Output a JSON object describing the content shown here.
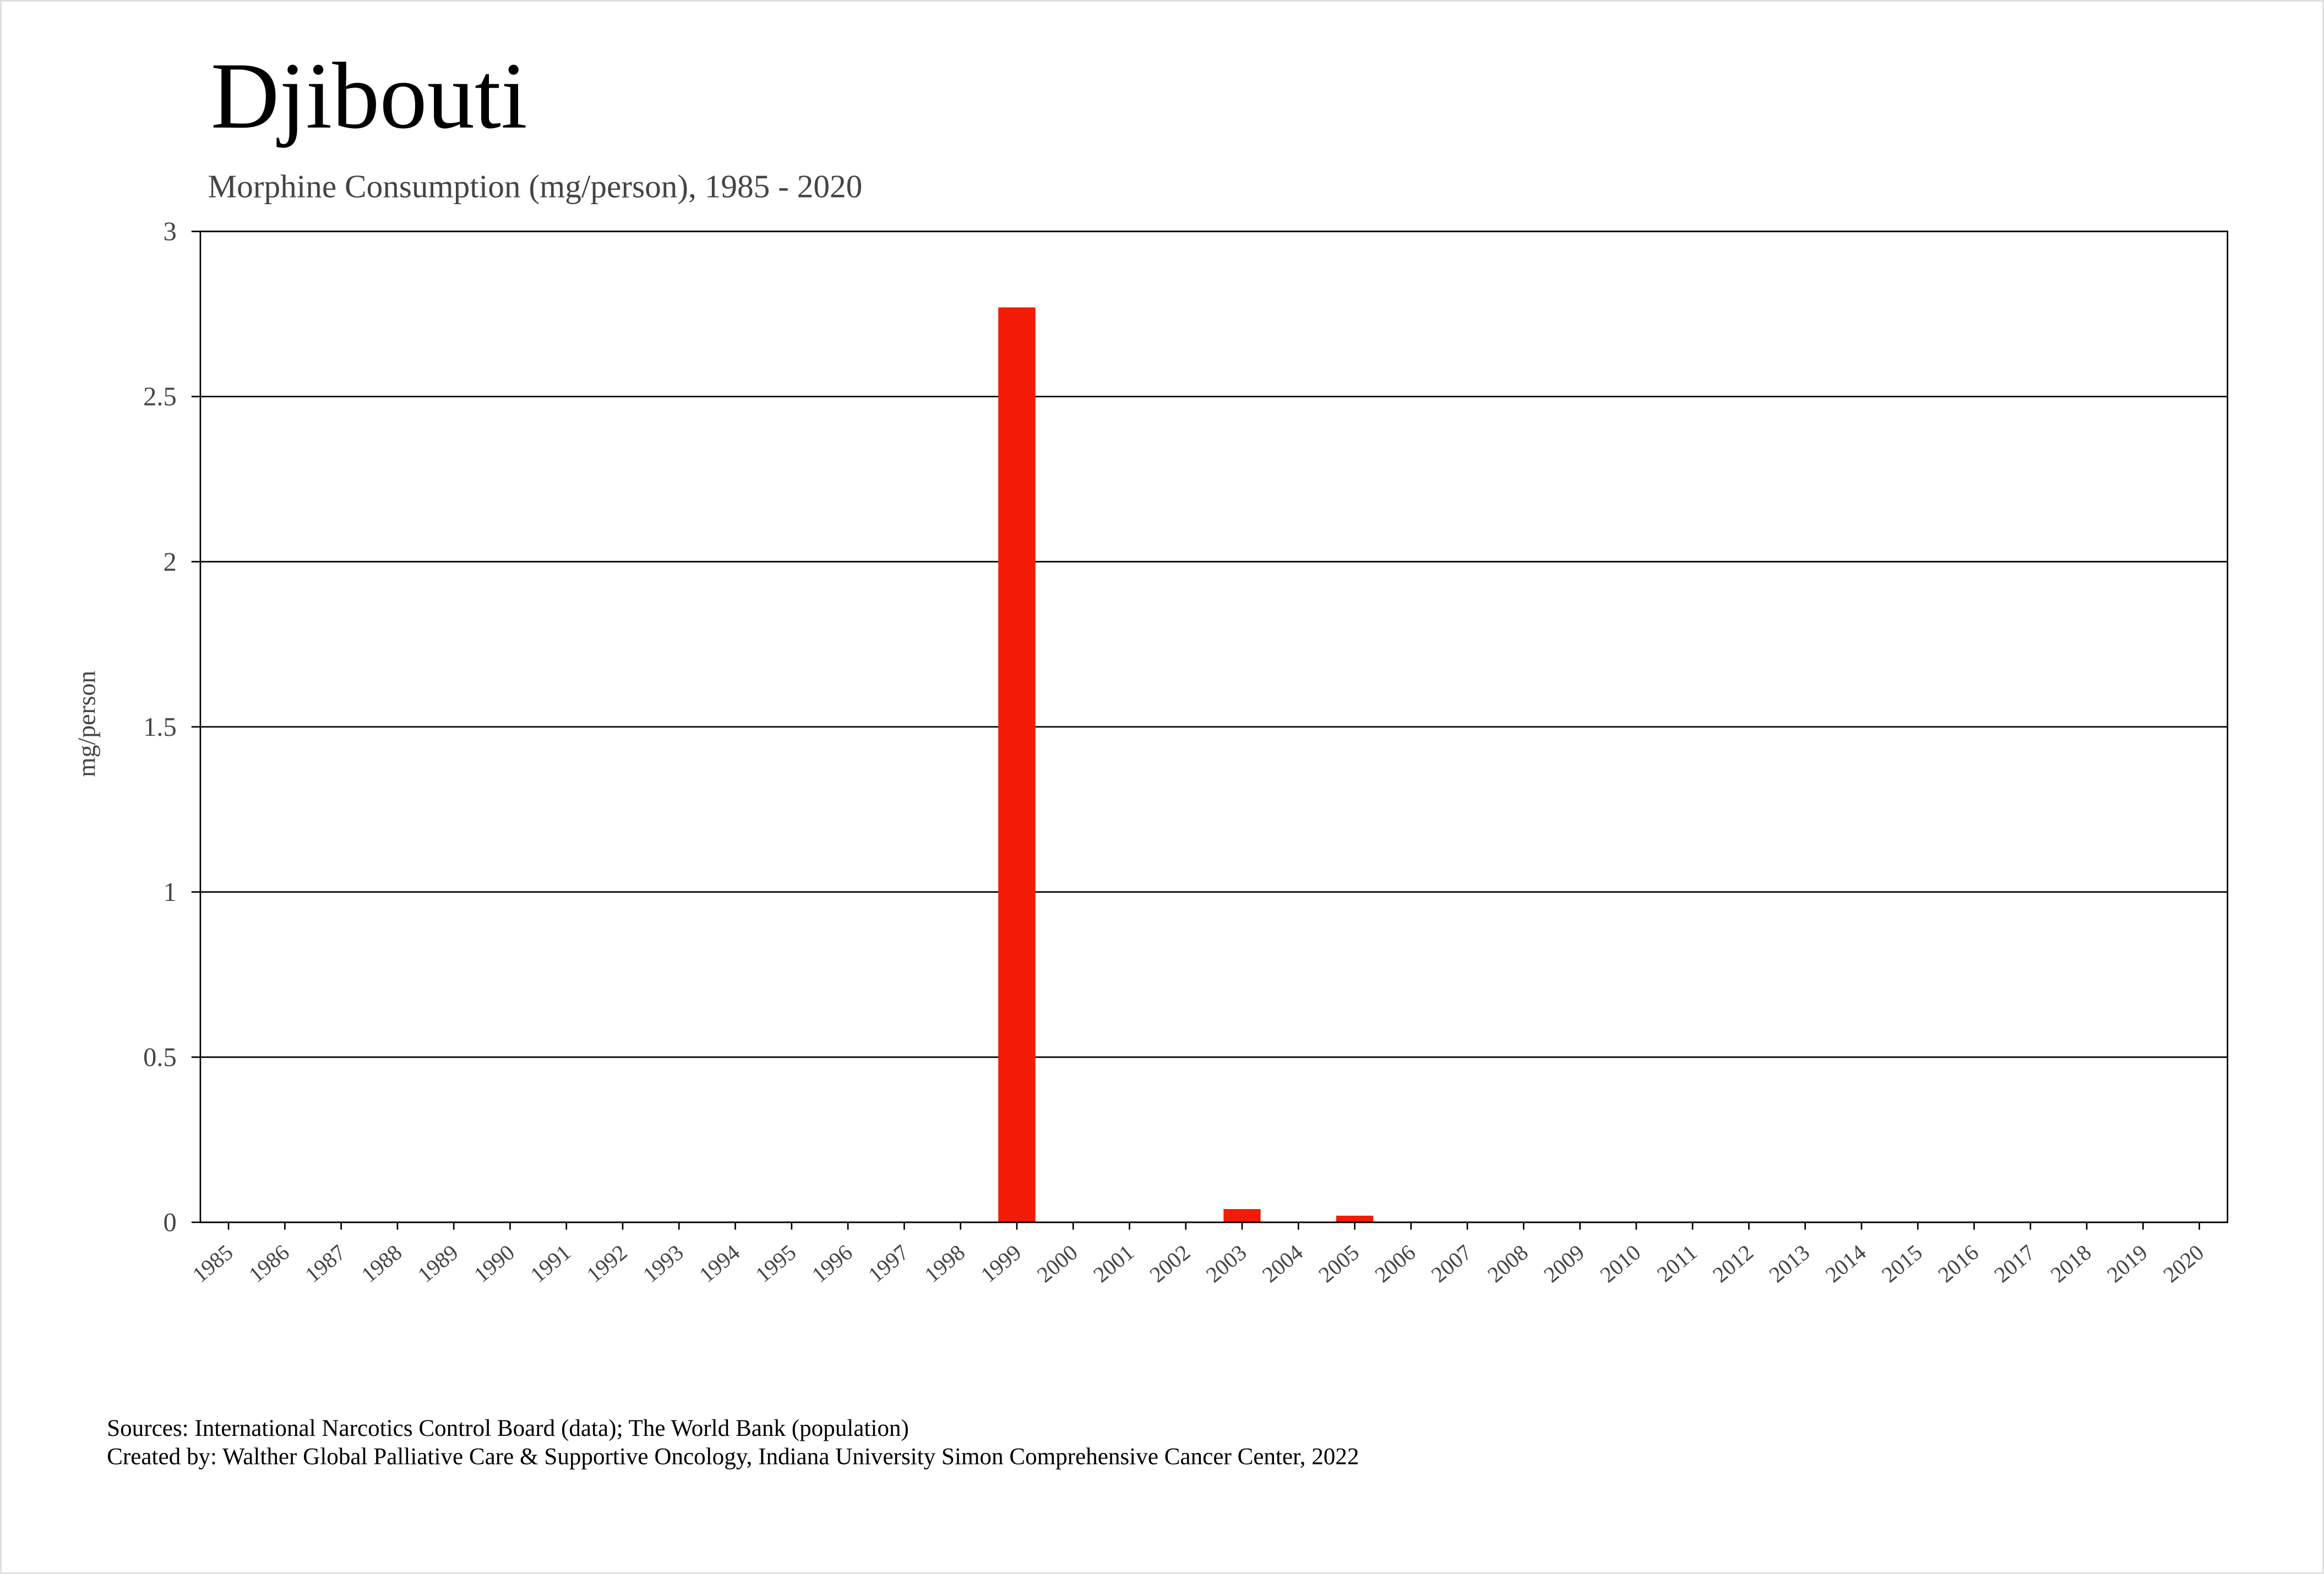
{
  "chart_data": {
    "type": "bar",
    "title": "Djibouti",
    "subtitle": "Morphine Consumption (mg/person), 1985 - 2020",
    "y_label": "mg/person",
    "categories": [
      "1985",
      "1986",
      "1987",
      "1988",
      "1989",
      "1990",
      "1991",
      "1992",
      "1993",
      "1994",
      "1995",
      "1996",
      "1997",
      "1998",
      "1999",
      "2000",
      "2001",
      "2002",
      "2003",
      "2004",
      "2005",
      "2006",
      "2007",
      "2008",
      "2009",
      "2010",
      "2011",
      "2012",
      "2013",
      "2014",
      "2015",
      "2016",
      "2017",
      "2018",
      "2019",
      "2020"
    ],
    "values": [
      0,
      0,
      0,
      0,
      0,
      0,
      0,
      0,
      0,
      0,
      0,
      0,
      0,
      0,
      2.77,
      0,
      0,
      0,
      0.04,
      0,
      0.02,
      0,
      0,
      0,
      0,
      0,
      0,
      0,
      0,
      0,
      0,
      0,
      0,
      0,
      0,
      0
    ],
    "color": "#f41b06",
    "ylim": [
      0,
      3
    ],
    "yticks": [
      0,
      0.5,
      1,
      1.5,
      2,
      2.5,
      3
    ],
    "grid": true,
    "source": "Sources: International Narcotics Control Board (data); The World Bank (population)",
    "credit": "Created by: Walther  Global Palliative Care & Supportive Oncology, Indiana University Simon Comprehensive Cancer Center, 2022"
  }
}
